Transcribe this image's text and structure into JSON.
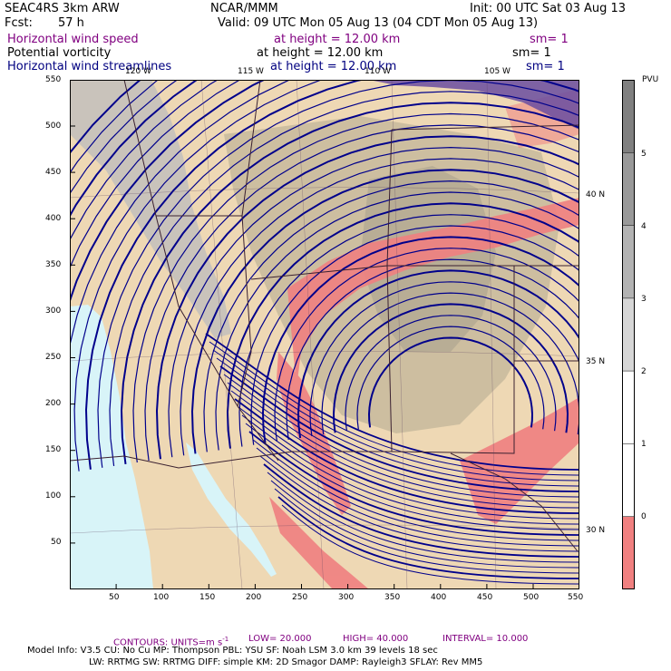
{
  "header": {
    "model": "SEAC4RS  3km ARW",
    "org": "NCAR/MMM",
    "init": "Init: 00 UTC Sat 03 Aug 13",
    "fcst_label": "Fcst:",
    "fcst_value": "57 h",
    "valid": "Valid: 09 UTC Mon 05 Aug 13 (04 CDT Mon 05 Aug 13)",
    "fields": [
      {
        "name": "Horizontal wind speed",
        "height": "at height = 12.00 km",
        "sm": "sm= 1"
      },
      {
        "name": "Potential vorticity",
        "height": "at height = 12.00 km",
        "sm": "sm= 1"
      },
      {
        "name": "Horizontal wind streamlines",
        "height": "at height = 12.00 km",
        "sm": "sm= 1"
      }
    ]
  },
  "map": {
    "lon_labels": [
      "120 W",
      "115 W",
      "110 W",
      "105 W"
    ],
    "lat_labels": [
      "40 N",
      "35 N",
      "30 N"
    ],
    "x_ticks": [
      "50",
      "100",
      "150",
      "200",
      "250",
      "300",
      "350",
      "400",
      "450",
      "500",
      "550"
    ],
    "y_ticks": [
      "550",
      "500",
      "450",
      "400",
      "350",
      "300",
      "250",
      "200",
      "150",
      "100",
      "50"
    ],
    "colors": {
      "land": "#eed8b4",
      "ocean": "#d8f4f8",
      "terrain_gray": "#c9c3bb",
      "high_terrain": "#b3a88f",
      "negative_pv": "#f08080",
      "streamline": "#00008b",
      "jet": "#6a4ea0"
    }
  },
  "colorbar": {
    "unit": "PVU",
    "labels": [
      "5",
      "4",
      "3",
      "2",
      "1",
      "0"
    ],
    "levels": [
      {
        "color": "#808080"
      },
      {
        "color": "#999999"
      },
      {
        "color": "#b3b3b3"
      },
      {
        "color": "#d6d6d6"
      },
      {
        "color": "#ffffff"
      },
      {
        "color": "#ffffff"
      },
      {
        "color": "#f08080"
      }
    ]
  },
  "footer": {
    "contours": "CONTOURS:  UNITS=m s",
    "contours_sup": "-1",
    "low": "LOW=  20.000",
    "high": "HIGH=  40.000",
    "interval": "INTERVAL=  10.000",
    "line1": "Model Info: V3.5      CU: No Cu     MP: Thompson     PBL: YSU       SF: Noah LSM     3.0 km   39 levels   18 sec",
    "line2": "LW: RRTMG    SW: RRTMG   DIFF: simple KM: 2D Smagor DAMP: Rayleigh3  SFLAY: Rev MM5"
  }
}
